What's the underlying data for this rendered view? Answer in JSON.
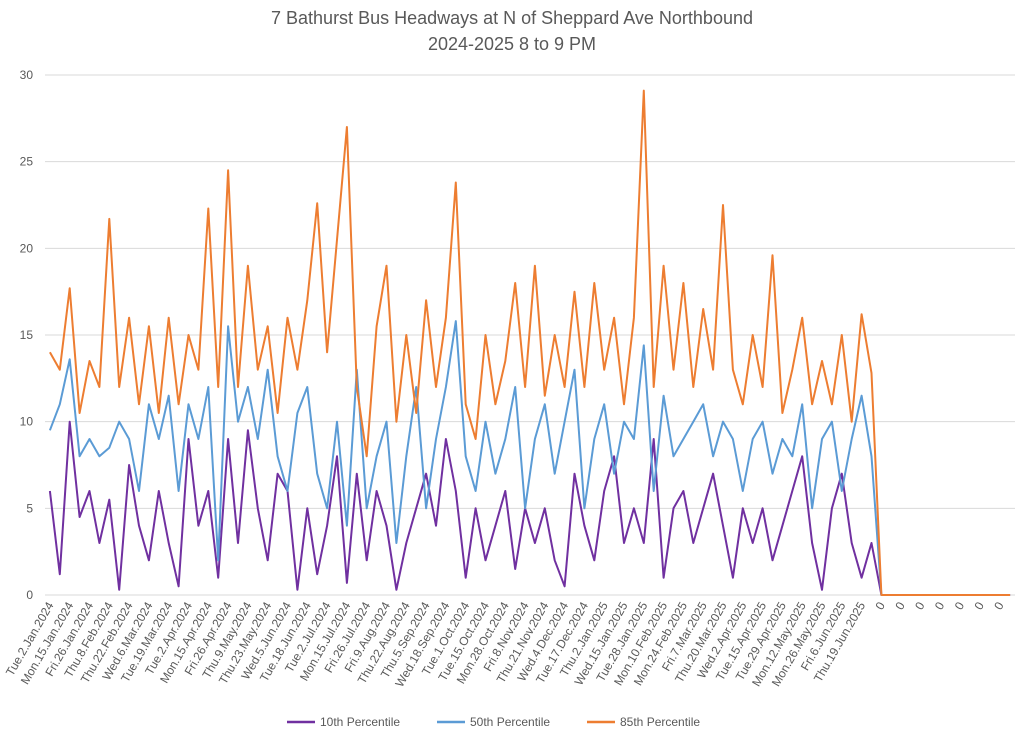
{
  "chart_data": {
    "type": "line",
    "title": "7 Bathurst Bus Headways at N of Sheppard Ave Northbound",
    "subtitle": "2024-2025 8 to 9 PM",
    "categories": [
      "Tue.2.Jan.2024",
      null,
      "Mon.15.Jan.2024",
      null,
      "Fri.26.Jan.2024",
      null,
      "Thu.8.Feb.2024",
      null,
      "Thu.22.Feb.2024",
      null,
      "Wed.6.Mar.2024",
      null,
      "Tue.19.Mar.2024",
      null,
      "Tue.2.Apr.2024",
      null,
      "Mon.15.Apr.2024",
      null,
      "Fri.26.Apr.2024",
      null,
      "Thu.9.May.2024",
      null,
      "Thu.23.May.2024",
      null,
      "Wed.5.Jun.2024",
      null,
      "Tue.18.Jun.2024",
      null,
      "Tue.2.Jul.2024",
      null,
      "Mon.15.Jul.2024",
      null,
      "Fri.26.Jul.2024",
      null,
      "Fri.9.Aug.2024",
      null,
      "Thu.22.Aug.2024",
      null,
      "Thu.5.Sep.2024",
      null,
      "Wed.18.Sep.2024",
      null,
      "Tue.1.Oct.2024",
      null,
      "Tue.15.Oct.2024",
      null,
      "Mon.28.Oct.2024",
      null,
      "Fri.8.Nov.2024",
      null,
      "Thu.21.Nov.2024",
      null,
      "Wed.4.Dec.2024",
      null,
      "Tue.17.Dec.2024",
      null,
      "Thu.2.Jan.2025",
      null,
      "Wed.15.Jan.2025",
      null,
      "Tue.28.Jan.2025",
      null,
      "Mon.10.Feb.2025",
      null,
      "Mon.24.Feb.2025",
      null,
      "Fri.7.Mar.2025",
      null,
      "Thu.20.Mar.2025",
      null,
      "Wed.2.Apr.2025",
      null,
      "Tue.15.Apr.2025",
      null,
      "Tue.29.Apr.2025",
      null,
      "Mon.12.May.2025",
      null,
      "Mon.26.May.2025",
      null,
      "Fri.6.Jun.2025",
      null,
      "Thu.19.Jun.2025",
      null,
      "0",
      null,
      "0",
      null,
      "0",
      null,
      "0",
      null,
      "0",
      null,
      "0",
      null,
      "0",
      null
    ],
    "series": [
      {
        "name": "10th Percentile",
        "color": "#7030a0",
        "values": [
          6,
          1.2,
          10,
          4.5,
          6,
          3,
          5.5,
          0.3,
          7.5,
          4,
          2,
          6,
          3,
          0.5,
          9,
          4,
          6,
          1,
          9,
          3,
          9.5,
          5,
          2,
          7,
          6,
          0.3,
          5,
          1.2,
          4,
          8,
          0.7,
          7,
          2,
          6,
          4,
          0.3,
          3,
          5,
          7,
          4,
          9,
          6,
          1,
          5,
          2,
          4,
          6,
          1.5,
          5,
          3,
          5,
          2,
          0.5,
          7,
          4,
          2,
          6,
          8,
          3,
          5,
          3,
          9,
          1,
          5,
          6,
          3,
          5,
          7,
          4,
          1,
          5,
          3,
          5,
          2,
          4,
          6,
          8,
          3,
          0.3,
          5,
          7,
          3,
          1,
          3,
          0,
          0,
          0,
          0,
          0,
          0,
          0,
          0,
          0,
          0,
          0,
          0,
          0,
          0
        ]
      },
      {
        "name": "50th Percentile",
        "color": "#5b9bd5",
        "values": [
          9.5,
          11,
          13.6,
          8,
          9,
          8,
          8.5,
          10,
          9,
          6,
          11,
          9,
          11.5,
          6,
          11,
          9,
          12,
          2,
          15.5,
          10,
          12,
          9,
          13,
          8,
          6,
          10.5,
          12,
          7,
          5,
          10,
          4,
          13,
          5,
          8,
          10,
          3,
          8,
          12,
          5,
          9,
          12,
          15.8,
          8,
          6,
          10,
          7,
          9,
          12,
          5,
          9,
          11,
          7,
          10,
          13,
          5,
          9,
          11,
          7,
          10,
          9,
          14.4,
          6,
          11.5,
          8,
          9,
          10,
          11,
          8,
          10,
          9,
          6,
          9,
          10,
          7,
          9,
          8,
          11,
          5,
          9,
          10,
          6,
          9,
          11.5,
          8,
          0,
          0,
          0,
          0,
          0,
          0,
          0,
          0,
          0,
          0,
          0,
          0,
          0,
          0
        ]
      },
      {
        "name": "85th Percentile",
        "color": "#ed7d31",
        "values": [
          14,
          13,
          17.7,
          10.5,
          13.5,
          12,
          21.7,
          12,
          16,
          11,
          15.5,
          10.5,
          16,
          11,
          15,
          13,
          22.3,
          12,
          24.5,
          12,
          19,
          13,
          15.5,
          10.5,
          16,
          13,
          17,
          22.6,
          14,
          20.5,
          27,
          12,
          8,
          15.5,
          19,
          10,
          15,
          10.5,
          17,
          12,
          16,
          23.8,
          11,
          9,
          15,
          11,
          13.5,
          18,
          12,
          19,
          11.5,
          15,
          12,
          17.5,
          12,
          18,
          13,
          16,
          11,
          16,
          29.1,
          12,
          19,
          13,
          18,
          12,
          16.5,
          13,
          22.5,
          13,
          11,
          15,
          12,
          19.6,
          10.5,
          13,
          16,
          11,
          13.5,
          11,
          15,
          10,
          16.2,
          12.8,
          0,
          0,
          0,
          0,
          0,
          0,
          0,
          0,
          0,
          0,
          0,
          0,
          0,
          0
        ]
      }
    ],
    "ylim": [
      0,
      30
    ],
    "yticks": [
      0,
      5,
      10,
      15,
      20,
      25,
      30
    ],
    "grid": true,
    "legend": "bottom"
  }
}
